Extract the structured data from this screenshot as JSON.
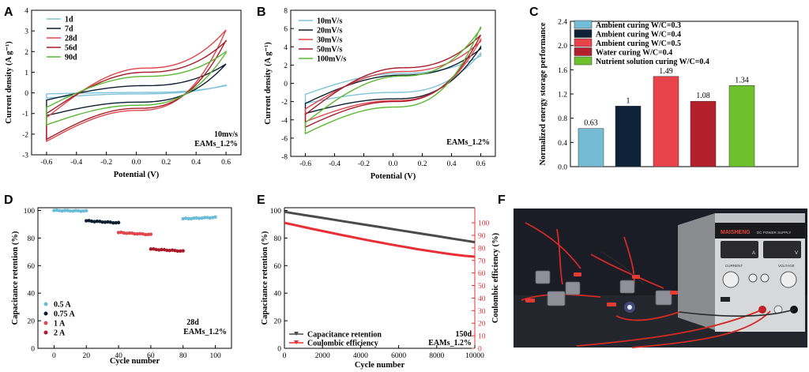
{
  "panels": [
    "A",
    "B",
    "C",
    "D",
    "E",
    "F"
  ],
  "chart_data": [
    {
      "id": "A",
      "type": "line",
      "xlabel": "Potential (V)",
      "ylabel": "Current density (A g⁻¹)",
      "xlim": [
        -0.7,
        0.7
      ],
      "ylim": [
        -3,
        4
      ],
      "xticks": [
        "-0.6",
        "-0.4",
        "-0.2",
        "0.0",
        "0.2",
        "0.4",
        "0.6"
      ],
      "yticks": [
        "-3",
        "-2",
        "-1",
        "0",
        "1",
        "2",
        "3",
        "4"
      ],
      "legend_position": "top-left",
      "annotation": [
        "10mv/s",
        "EAMs_1.2%"
      ],
      "series": [
        {
          "name": "1d",
          "color": "#7ec3d8",
          "vmin": -0.6,
          "vmax": 0.6,
          "iTop": [
            -0.05,
            0.35
          ],
          "iBot": [
            -0.25,
            0.38
          ],
          "midTop": 0.02,
          "midBot": -0.05
        },
        {
          "name": "7d",
          "color": "#0e1f33",
          "vmin": -0.6,
          "vmax": 0.6,
          "iTop": [
            -0.35,
            1.4
          ],
          "iBot": [
            -1.1,
            1.4
          ],
          "midTop": 0.35,
          "midBot": -0.45
        },
        {
          "name": "28d",
          "color": "#e0464c",
          "vmin": -0.6,
          "vmax": 0.6,
          "iTop": [
            -1.2,
            3.05
          ],
          "iBot": [
            -2.35,
            3.05
          ],
          "midTop": 1.2,
          "midBot": -0.85
        },
        {
          "name": "56d",
          "color": "#a91c2b",
          "vmin": -0.6,
          "vmax": 0.6,
          "iTop": [
            -1.0,
            2.5
          ],
          "iBot": [
            -2.25,
            2.55
          ],
          "midTop": 1.0,
          "midBot": -0.75
        },
        {
          "name": "90d",
          "color": "#5bb832",
          "vmin": -0.6,
          "vmax": 0.6,
          "iTop": [
            -0.7,
            2.0
          ],
          "iBot": [
            -1.55,
            1.95
          ],
          "midTop": 0.8,
          "midBot": -0.6
        }
      ]
    },
    {
      "id": "B",
      "type": "line",
      "xlabel": "Potential (V)",
      "ylabel": "Current density (A g⁻¹)",
      "xlim": [
        -0.7,
        0.7
      ],
      "ylim": [
        -8,
        8
      ],
      "xticks": [
        "-0.6",
        "-0.4",
        "-0.2",
        "0.0",
        "0.2",
        "0.4",
        "0.6"
      ],
      "yticks": [
        "-8",
        "-6",
        "-4",
        "-2",
        "0",
        "2",
        "4",
        "6",
        "8"
      ],
      "legend_position": "top-left",
      "annotation": [
        "EAMs_1.2%"
      ],
      "series": [
        {
          "name": "10mV/s",
          "color": "#7ec3d8",
          "vmin": -0.6,
          "vmax": 0.6,
          "iTop": [
            -1.2,
            3.0
          ],
          "iBot": [
            -2.2,
            3.3
          ],
          "midTop": 1.1,
          "midBot": -1.0
        },
        {
          "name": "20mV/s",
          "color": "#0e1f33",
          "vmin": -0.6,
          "vmax": 0.6,
          "iTop": [
            -2.2,
            3.8
          ],
          "iBot": [
            -3.3,
            4.0
          ],
          "midTop": 0.9,
          "midBot": -1.7
        },
        {
          "name": "30mV/s",
          "color": "#e0464c",
          "vmin": -0.6,
          "vmax": 0.6,
          "iTop": [
            -2.8,
            4.6
          ],
          "iBot": [
            -4.2,
            4.8
          ],
          "midTop": 1.3,
          "midBot": -1.9
        },
        {
          "name": "50mV/s",
          "color": "#a91c2b",
          "vmin": -0.6,
          "vmax": 0.6,
          "iTop": [
            -3.4,
            5.3
          ],
          "iBot": [
            -4.8,
            5.3
          ],
          "midTop": 1.7,
          "midBot": -2.0
        },
        {
          "name": "100mV/s",
          "color": "#5bb832",
          "vmin": -0.6,
          "vmax": 0.6,
          "iTop": [
            -4.3,
            6.0
          ],
          "iBot": [
            -5.5,
            6.2
          ],
          "midTop": 0.8,
          "midBot": -2.6
        }
      ]
    },
    {
      "id": "C",
      "type": "bar",
      "ylabel": "Normalized energy storage performance",
      "ylim": [
        0,
        2.4
      ],
      "yticks": [
        "0.0",
        "0.4",
        "0.8",
        "1.2",
        "1.6",
        "2.0",
        "2.4"
      ],
      "legend_position": "top",
      "categories": [
        "Ambient curing W/C=0.3",
        "Ambient curing W/C=0.4",
        "Ambient curing W/C=0.5",
        "Water curing W/C=0.4",
        "Nutrient solution curing W/C=0.4"
      ],
      "values": [
        0.63,
        1,
        1.49,
        1.08,
        1.34
      ],
      "value_labels": [
        "0.63",
        "1",
        "1.49",
        "1.08",
        "1.34"
      ],
      "colors": [
        "#74bcd4",
        "#0e2238",
        "#e8434a",
        "#b3202c",
        "#6cc12c"
      ]
    },
    {
      "id": "D",
      "type": "scatter",
      "xlabel": "Cycle number",
      "ylabel": "Capacitance retention (%)",
      "xlim": [
        -10,
        110
      ],
      "ylim": [
        0,
        102
      ],
      "xticks": [
        "0",
        "20",
        "40",
        "60",
        "80",
        "100"
      ],
      "yticks": [
        "0",
        "20",
        "40",
        "60",
        "80",
        "100"
      ],
      "legend_position": "bottom-left",
      "annotation": [
        "28d",
        "EAMs_1.2%"
      ],
      "series": [
        {
          "name": "0.5 A",
          "color": "#6bbcd8",
          "segments": [
            {
              "x": [
                0,
                20
              ],
              "y": [
                100,
                99.6
              ]
            },
            {
              "x": [
                80,
                100
              ],
              "y": [
                94,
                95
              ]
            }
          ]
        },
        {
          "name": "0.75 A",
          "color": "#0e1f33",
          "segments": [
            {
              "x": [
                20,
                40
              ],
              "y": [
                92.5,
                91
              ]
            }
          ]
        },
        {
          "name": "1 A",
          "color": "#e0464c",
          "segments": [
            {
              "x": [
                40,
                60
              ],
              "y": [
                84,
                82.5
              ]
            }
          ]
        },
        {
          "name": "2 A",
          "color": "#a91c2b",
          "segments": [
            {
              "x": [
                60,
                80
              ],
              "y": [
                72,
                70.5
              ]
            }
          ]
        }
      ]
    },
    {
      "id": "E",
      "type": "line",
      "xlabel": "Cycle number",
      "ylabel": "Capacitance retention (%)",
      "ylabel2": "Coulombic efficiency (%)",
      "xlim": [
        0,
        10000
      ],
      "ylim": [
        0,
        100
      ],
      "ylim2": [
        0,
        110
      ],
      "xticks": [
        "0",
        "2000",
        "4000",
        "6000",
        "8000",
        "10000"
      ],
      "yticks": [
        "0",
        "20",
        "40",
        "60",
        "80",
        "100"
      ],
      "yticks2": [
        "0",
        "10",
        "20",
        "30",
        "40",
        "50",
        "60",
        "70",
        "80",
        "90",
        "100"
      ],
      "legend_position": "bottom-left",
      "annotation": [
        "150d",
        "EAMs_1.2%"
      ],
      "series": [
        {
          "name": "Capacitance retention",
          "color": "#4a4a4a",
          "axis": "left",
          "x": [
            0,
            10000
          ],
          "y": [
            99,
            77
          ]
        },
        {
          "name": "Coulombic efficiency",
          "color": "#e82f36",
          "axis": "right",
          "x": [
            0,
            10000
          ],
          "y": [
            100,
            73
          ]
        }
      ]
    }
  ],
  "photo": {
    "brand": "MAISHENG",
    "product": "DC POWER SUPPLY",
    "labels": [
      "CURRENT",
      "VOLTAGE",
      "A",
      "V"
    ]
  }
}
